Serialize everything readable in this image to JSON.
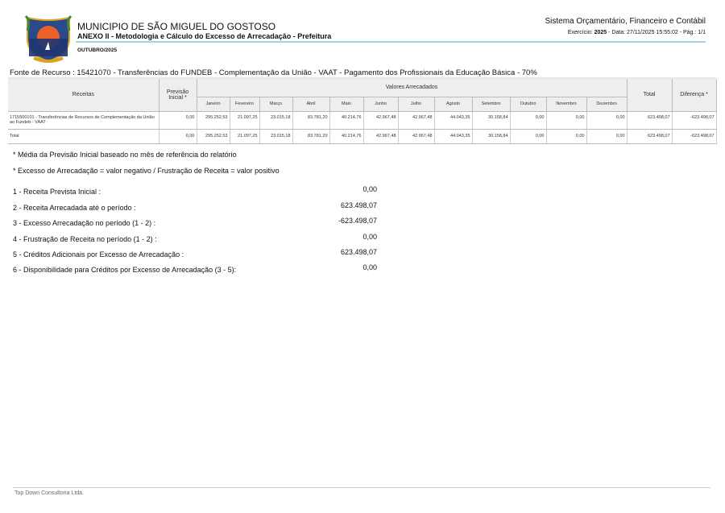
{
  "header": {
    "municipality": "MUNICIPIO DE SÃO MIGUEL DO GOSTOSO",
    "report_title": "ANEXO II - Metodologia e Cálculo do Excesso de Arrecadação - Prefeitura",
    "period": "OUTUBRO/2025",
    "system": "Sistema Orçamentário, Financeiro e Contábil",
    "exercise_label": "Exercício:",
    "exercise": "2025",
    "date_text": " - Data: 27/11/2025 15:55:02 -   Pág.: 1/1"
  },
  "fonte": "Fonte de Recurso : 15421070 - Transferências do FUNDEB - Complementação da União - VAAT - Pagamento  dos Profissionais da Educação Básica - 70%",
  "table": {
    "headers": {
      "receitas": "Receitas",
      "previsao": "Previsão Inicial *",
      "valores": "Valores Arrecadados",
      "total": "Total",
      "diferenca": "Diferença *",
      "months": [
        "Janeiro",
        "Fevereiro",
        "Março",
        "Abril",
        "Maio",
        "Junho",
        "Julho",
        "Agosto",
        "Setembro",
        "Outubro",
        "Novembro",
        "Dezembro"
      ]
    },
    "rows": [
      {
        "receita": "1715500101 - Transferências de Recursos de Complementação da União ao Fundeb - VAAT",
        "previsao": "0,00",
        "months": [
          "295.252,53",
          "21.097,25",
          "23.015,18",
          "83.781,20",
          "40.214,76",
          "42.967,48",
          "42.967,48",
          "44.043,35",
          "30.158,84",
          "0,00",
          "0,00",
          "0,00"
        ],
        "total": "623.498,07",
        "diferenca": "-623.498,07"
      },
      {
        "receita": "Total",
        "previsao": "0,00",
        "months": [
          "295.252,53",
          "21.097,25",
          "23.015,18",
          "83.781,20",
          "40.214,76",
          "42.967,48",
          "42.967,48",
          "44.043,35",
          "30.158,84",
          "0,00",
          "0,00",
          "0,00"
        ],
        "total": "623.498,07",
        "diferenca": "-623.498,07"
      }
    ]
  },
  "notes": [
    "* Média da Previsão Inicial baseado no mês de referência do relatório",
    "* Excesso de Arrecadação = valor negativo / Frustração de Receita = valor positivo"
  ],
  "summary": [
    {
      "label": "1 - Receita Prevista Inicial :",
      "value": "0,00"
    },
    {
      "label": "2 - Receita Arrecadada até o período :",
      "value": "623.498,07"
    },
    {
      "label": "3 - Excesso Arrecadação no período (1 - 2) :",
      "value": "-623.498,07"
    },
    {
      "label": "4 - Frustração de Receita no período (1 - 2) :",
      "value": "0,00"
    },
    {
      "label": "5 - Créditos Adicionais por Excesso de Arrecadação :",
      "value": "623.498,07"
    },
    {
      "label": "6 - Disponibilidade para Créditos por Excesso de Arrecadação (3 - 5):",
      "value": "0,00"
    }
  ],
  "footer": "Top Down Consultoria Ltda."
}
